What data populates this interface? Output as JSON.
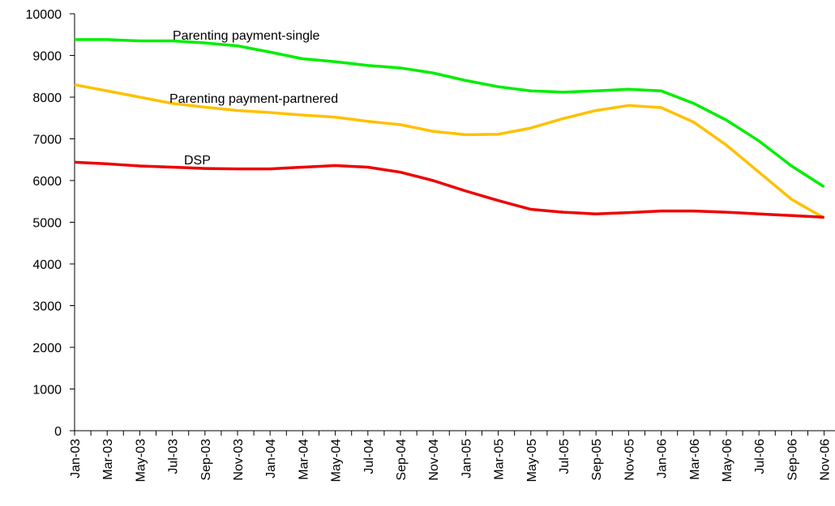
{
  "chart_data": {
    "type": "line",
    "categories": [
      "Jan-03",
      null,
      "Mar-03",
      null,
      "May-03",
      null,
      "Jul-03",
      null,
      "Sep-03",
      null,
      "Nov-03",
      null,
      "Jan-04",
      null,
      "Mar-04",
      null,
      "May-04",
      null,
      "Jul-04",
      null,
      "Sep-04",
      null,
      "Nov-04",
      null,
      "Jan-05",
      null,
      "Mar-05",
      null,
      "May-05",
      null,
      "Jul-05",
      null,
      "Sep-05",
      null,
      "Nov-05",
      null,
      "Jan-06",
      null,
      "Mar-06",
      null,
      "May-06",
      null,
      "Jul-06",
      null,
      "Sep-06",
      null,
      "Nov-06"
    ],
    "series": [
      {
        "name": "Parenting payment-single",
        "color": "#00ee00",
        "values": [
          9380,
          9380,
          9380,
          9365,
          9350,
          9350,
          9350,
          9325,
          9300,
          9265,
          9230,
          9155,
          9080,
          9000,
          8920,
          8885,
          8850,
          8805,
          8760,
          8730,
          8700,
          8640,
          8580,
          8490,
          8400,
          8325,
          8250,
          8200,
          8150,
          8135,
          8120,
          8135,
          8150,
          8170,
          8190,
          8170,
          8150,
          8000,
          7850,
          7650,
          7450,
          7200,
          6950,
          6650,
          6350,
          6100,
          5850
        ]
      },
      {
        "name": "Parenting payment-partnered",
        "color": "#ffc000",
        "values": [
          8300,
          8225,
          8150,
          8075,
          8000,
          7925,
          7850,
          7805,
          7760,
          7720,
          7680,
          7655,
          7630,
          7600,
          7570,
          7545,
          7520,
          7470,
          7420,
          7380,
          7340,
          7260,
          7180,
          7140,
          7100,
          7105,
          7110,
          7185,
          7260,
          7375,
          7490,
          7585,
          7680,
          7740,
          7800,
          7775,
          7750,
          7575,
          7400,
          7125,
          6850,
          6525,
          6200,
          5875,
          5550,
          5325,
          5100
        ]
      },
      {
        "name": "DSP",
        "color": "#ee0000",
        "values": [
          6440,
          6420,
          6400,
          6375,
          6350,
          6335,
          6320,
          6305,
          6290,
          6285,
          6280,
          6280,
          6280,
          6300,
          6320,
          6340,
          6360,
          6340,
          6320,
          6260,
          6200,
          6100,
          6000,
          5875,
          5750,
          5635,
          5520,
          5415,
          5310,
          5275,
          5240,
          5220,
          5200,
          5215,
          5230,
          5250,
          5270,
          5270,
          5270,
          5255,
          5240,
          5220,
          5200,
          5180,
          5160,
          5140,
          5120
        ]
      }
    ],
    "ylim": [
      0,
      10000
    ],
    "yticks": [
      0,
      1000,
      2000,
      3000,
      4000,
      5000,
      6000,
      7000,
      8000,
      9000,
      10000
    ],
    "grid": false
  }
}
